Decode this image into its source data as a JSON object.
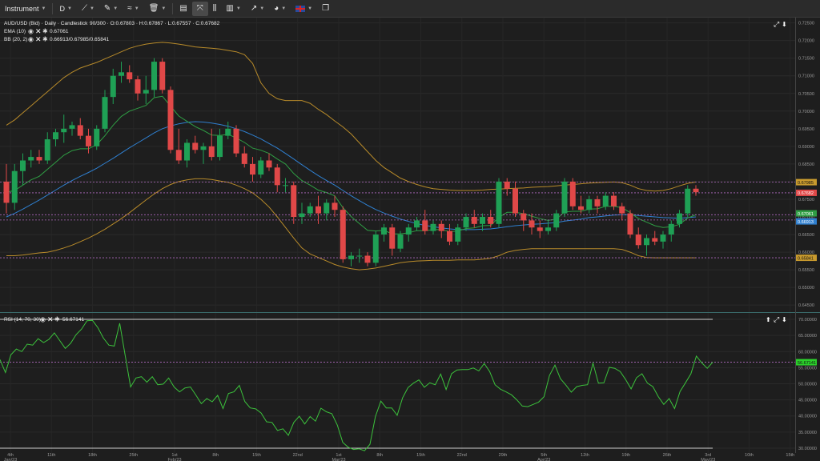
{
  "toolbar": {
    "instrument_label": "Instrument",
    "timeframe_label": "D",
    "chart_type_icon": "candlestick-icon",
    "flag_icon": "uk-flag-icon"
  },
  "main": {
    "legend": {
      "symbol": "AUD/USD (Bid) · Daily · Candlestick",
      "ohlc": "90/300 · O:0.67803 · H:0.67867 · L:0.67557 · C:0.67682",
      "ema_label": "EMA (10)",
      "ema_value": "0.67061",
      "bb_label": "BB (20, 2)",
      "bb_value": "0.66913/0.67985/0.65841"
    },
    "badges": {
      "bb_upper": "0.67985",
      "last_price": "0.67682",
      "ema": "0.67061",
      "bb_mid": "0.66913",
      "bb_lower": "0.65841"
    },
    "y_ticks": [
      "0.72500",
      "0.72000",
      "0.71500",
      "0.71000",
      "0.70500",
      "0.70000",
      "0.69500",
      "0.69000",
      "0.68500",
      "0.68000",
      "0.67500",
      "0.67000",
      "0.66500",
      "0.66000",
      "0.65500",
      "0.65000",
      "0.64500"
    ],
    "colors": {
      "up": "#1fa055",
      "down": "#e04848",
      "ema": "#2f9e44",
      "bb_mid": "#2f7fcf",
      "bb_band": "#b78a2a"
    }
  },
  "rsi": {
    "label": "RSI (14, 70, 30)",
    "value": "56.67141",
    "y_ticks": [
      "70.00000",
      "65.00000",
      "60.00000",
      "55.00000",
      "50.00000",
      "45.00000",
      "40.00000",
      "35.00000",
      "30.00000"
    ],
    "overbought": 70,
    "oversold": 30
  },
  "x_axis": {
    "ticks": [
      {
        "label": "4th",
        "sub": "Jan/23"
      },
      {
        "label": "11th",
        "sub": ""
      },
      {
        "label": "18th",
        "sub": ""
      },
      {
        "label": "25th",
        "sub": ""
      },
      {
        "label": "1st",
        "sub": "Feb/23"
      },
      {
        "label": "8th",
        "sub": ""
      },
      {
        "label": "15th",
        "sub": ""
      },
      {
        "label": "22nd",
        "sub": ""
      },
      {
        "label": "1st",
        "sub": "Mar/23"
      },
      {
        "label": "8th",
        "sub": ""
      },
      {
        "label": "15th",
        "sub": ""
      },
      {
        "label": "22nd",
        "sub": ""
      },
      {
        "label": "29th",
        "sub": ""
      },
      {
        "label": "5th",
        "sub": "Apr/23"
      },
      {
        "label": "12th",
        "sub": ""
      },
      {
        "label": "19th",
        "sub": ""
      },
      {
        "label": "26th",
        "sub": ""
      },
      {
        "label": "3rd",
        "sub": "May/23"
      },
      {
        "label": "10th",
        "sub": ""
      },
      {
        "label": "15th",
        "sub": ""
      }
    ]
  },
  "chart_data": [
    {
      "type": "candlestick",
      "title": "AUD/USD (Bid) · Daily · Candlestick",
      "ylim": [
        0.643,
        0.7265
      ],
      "candles": [
        {
          "o": 0.68,
          "h": 0.685,
          "l": 0.671,
          "c": 0.674
        },
        {
          "o": 0.674,
          "h": 0.685,
          "l": 0.672,
          "c": 0.683
        },
        {
          "o": 0.683,
          "h": 0.688,
          "l": 0.679,
          "c": 0.686
        },
        {
          "o": 0.686,
          "h": 0.689,
          "l": 0.684,
          "c": 0.687
        },
        {
          "o": 0.687,
          "h": 0.689,
          "l": 0.685,
          "c": 0.686
        },
        {
          "o": 0.686,
          "h": 0.694,
          "l": 0.685,
          "c": 0.692
        },
        {
          "o": 0.692,
          "h": 0.695,
          "l": 0.69,
          "c": 0.694
        },
        {
          "o": 0.694,
          "h": 0.699,
          "l": 0.691,
          "c": 0.695
        },
        {
          "o": 0.695,
          "h": 0.697,
          "l": 0.693,
          "c": 0.696
        },
        {
          "o": 0.696,
          "h": 0.698,
          "l": 0.692,
          "c": 0.693
        },
        {
          "o": 0.693,
          "h": 0.695,
          "l": 0.688,
          "c": 0.69
        },
        {
          "o": 0.69,
          "h": 0.696,
          "l": 0.689,
          "c": 0.695
        },
        {
          "o": 0.695,
          "h": 0.706,
          "l": 0.694,
          "c": 0.704
        },
        {
          "o": 0.704,
          "h": 0.712,
          "l": 0.702,
          "c": 0.71
        },
        {
          "o": 0.71,
          "h": 0.714,
          "l": 0.708,
          "c": 0.711
        },
        {
          "o": 0.711,
          "h": 0.713,
          "l": 0.708,
          "c": 0.709
        },
        {
          "o": 0.709,
          "h": 0.71,
          "l": 0.703,
          "c": 0.705
        },
        {
          "o": 0.705,
          "h": 0.71,
          "l": 0.702,
          "c": 0.706
        },
        {
          "o": 0.706,
          "h": 0.715,
          "l": 0.704,
          "c": 0.714
        },
        {
          "o": 0.714,
          "h": 0.715,
          "l": 0.705,
          "c": 0.706
        },
        {
          "o": 0.706,
          "h": 0.707,
          "l": 0.688,
          "c": 0.689
        },
        {
          "o": 0.689,
          "h": 0.695,
          "l": 0.685,
          "c": 0.686
        },
        {
          "o": 0.686,
          "h": 0.692,
          "l": 0.684,
          "c": 0.691
        },
        {
          "o": 0.691,
          "h": 0.693,
          "l": 0.688,
          "c": 0.689
        },
        {
          "o": 0.689,
          "h": 0.691,
          "l": 0.685,
          "c": 0.69
        },
        {
          "o": 0.69,
          "h": 0.695,
          "l": 0.686,
          "c": 0.687
        },
        {
          "o": 0.687,
          "h": 0.695,
          "l": 0.686,
          "c": 0.693
        },
        {
          "o": 0.693,
          "h": 0.697,
          "l": 0.692,
          "c": 0.695
        },
        {
          "o": 0.695,
          "h": 0.696,
          "l": 0.687,
          "c": 0.688
        },
        {
          "o": 0.688,
          "h": 0.69,
          "l": 0.684,
          "c": 0.685
        },
        {
          "o": 0.685,
          "h": 0.687,
          "l": 0.68,
          "c": 0.682
        },
        {
          "o": 0.682,
          "h": 0.687,
          "l": 0.681,
          "c": 0.686
        },
        {
          "o": 0.686,
          "h": 0.688,
          "l": 0.683,
          "c": 0.684
        },
        {
          "o": 0.684,
          "h": 0.685,
          "l": 0.677,
          "c": 0.679
        },
        {
          "o": 0.679,
          "h": 0.681,
          "l": 0.677,
          "c": 0.679
        },
        {
          "o": 0.679,
          "h": 0.68,
          "l": 0.668,
          "c": 0.67
        },
        {
          "o": 0.67,
          "h": 0.674,
          "l": 0.668,
          "c": 0.671
        },
        {
          "o": 0.671,
          "h": 0.674,
          "l": 0.67,
          "c": 0.673
        },
        {
          "o": 0.673,
          "h": 0.676,
          "l": 0.668,
          "c": 0.671
        },
        {
          "o": 0.671,
          "h": 0.675,
          "l": 0.669,
          "c": 0.674
        },
        {
          "o": 0.674,
          "h": 0.676,
          "l": 0.67,
          "c": 0.672
        },
        {
          "o": 0.672,
          "h": 0.673,
          "l": 0.657,
          "c": 0.658
        },
        {
          "o": 0.658,
          "h": 0.66,
          "l": 0.656,
          "c": 0.659
        },
        {
          "o": 0.659,
          "h": 0.661,
          "l": 0.657,
          "c": 0.659
        },
        {
          "o": 0.659,
          "h": 0.66,
          "l": 0.656,
          "c": 0.657
        },
        {
          "o": 0.657,
          "h": 0.666,
          "l": 0.656,
          "c": 0.665
        },
        {
          "o": 0.665,
          "h": 0.668,
          "l": 0.663,
          "c": 0.667
        },
        {
          "o": 0.667,
          "h": 0.668,
          "l": 0.659,
          "c": 0.661
        },
        {
          "o": 0.661,
          "h": 0.666,
          "l": 0.66,
          "c": 0.665
        },
        {
          "o": 0.665,
          "h": 0.668,
          "l": 0.663,
          "c": 0.667
        },
        {
          "o": 0.667,
          "h": 0.67,
          "l": 0.666,
          "c": 0.669
        },
        {
          "o": 0.669,
          "h": 0.672,
          "l": 0.665,
          "c": 0.666
        },
        {
          "o": 0.666,
          "h": 0.669,
          "l": 0.665,
          "c": 0.668
        },
        {
          "o": 0.668,
          "h": 0.669,
          "l": 0.664,
          "c": 0.666
        },
        {
          "o": 0.666,
          "h": 0.668,
          "l": 0.662,
          "c": 0.663
        },
        {
          "o": 0.663,
          "h": 0.668,
          "l": 0.662,
          "c": 0.667
        },
        {
          "o": 0.667,
          "h": 0.671,
          "l": 0.666,
          "c": 0.67
        },
        {
          "o": 0.67,
          "h": 0.672,
          "l": 0.667,
          "c": 0.668
        },
        {
          "o": 0.668,
          "h": 0.671,
          "l": 0.666,
          "c": 0.67
        },
        {
          "o": 0.67,
          "h": 0.672,
          "l": 0.667,
          "c": 0.668
        },
        {
          "o": 0.668,
          "h": 0.681,
          "l": 0.667,
          "c": 0.68
        },
        {
          "o": 0.68,
          "h": 0.681,
          "l": 0.676,
          "c": 0.678
        },
        {
          "o": 0.678,
          "h": 0.68,
          "l": 0.67,
          "c": 0.671
        },
        {
          "o": 0.671,
          "h": 0.672,
          "l": 0.666,
          "c": 0.669
        },
        {
          "o": 0.669,
          "h": 0.671,
          "l": 0.665,
          "c": 0.667
        },
        {
          "o": 0.667,
          "h": 0.669,
          "l": 0.664,
          "c": 0.666
        },
        {
          "o": 0.666,
          "h": 0.669,
          "l": 0.665,
          "c": 0.667
        },
        {
          "o": 0.667,
          "h": 0.672,
          "l": 0.666,
          "c": 0.671
        },
        {
          "o": 0.671,
          "h": 0.681,
          "l": 0.67,
          "c": 0.68
        },
        {
          "o": 0.68,
          "h": 0.681,
          "l": 0.672,
          "c": 0.673
        },
        {
          "o": 0.673,
          "h": 0.676,
          "l": 0.671,
          "c": 0.672
        },
        {
          "o": 0.672,
          "h": 0.676,
          "l": 0.671,
          "c": 0.675
        },
        {
          "o": 0.675,
          "h": 0.676,
          "l": 0.671,
          "c": 0.673
        },
        {
          "o": 0.673,
          "h": 0.677,
          "l": 0.672,
          "c": 0.676
        },
        {
          "o": 0.676,
          "h": 0.677,
          "l": 0.672,
          "c": 0.673
        },
        {
          "o": 0.673,
          "h": 0.674,
          "l": 0.669,
          "c": 0.671
        },
        {
          "o": 0.671,
          "h": 0.672,
          "l": 0.664,
          "c": 0.665
        },
        {
          "o": 0.665,
          "h": 0.667,
          "l": 0.661,
          "c": 0.662
        },
        {
          "o": 0.662,
          "h": 0.665,
          "l": 0.659,
          "c": 0.664
        },
        {
          "o": 0.664,
          "h": 0.666,
          "l": 0.662,
          "c": 0.663
        },
        {
          "o": 0.663,
          "h": 0.666,
          "l": 0.661,
          "c": 0.665
        },
        {
          "o": 0.665,
          "h": 0.669,
          "l": 0.663,
          "c": 0.668
        },
        {
          "o": 0.668,
          "h": 0.672,
          "l": 0.667,
          "c": 0.671
        },
        {
          "o": 0.671,
          "h": 0.679,
          "l": 0.67,
          "c": 0.678
        },
        {
          "o": 0.678,
          "h": 0.679,
          "l": 0.676,
          "c": 0.677
        }
      ],
      "ema": [
        0.677,
        0.6775,
        0.679,
        0.6805,
        0.6815,
        0.6835,
        0.6855,
        0.6875,
        0.6888,
        0.6893,
        0.6893,
        0.6905,
        0.693,
        0.696,
        0.6985,
        0.7,
        0.7008,
        0.7016,
        0.7038,
        0.7042,
        0.7014,
        0.6986,
        0.6971,
        0.6956,
        0.6945,
        0.6932,
        0.6931,
        0.6934,
        0.6924,
        0.6911,
        0.6895,
        0.6889,
        0.688,
        0.6864,
        0.685,
        0.6823,
        0.6803,
        0.679,
        0.6776,
        0.6769,
        0.676,
        0.6726,
        0.6701,
        0.6681,
        0.6662,
        0.666,
        0.6662,
        0.6652,
        0.6652,
        0.6655,
        0.6661,
        0.6661,
        0.6664,
        0.6664,
        0.6658,
        0.666,
        0.6667,
        0.6669,
        0.6675,
        0.6676,
        0.6699,
        0.6713,
        0.6713,
        0.6709,
        0.6702,
        0.6695,
        0.669,
        0.6694,
        0.6714,
        0.6716,
        0.6716,
        0.6722,
        0.6723,
        0.673,
        0.673,
        0.6726,
        0.6712,
        0.6695,
        0.6685,
        0.6675,
        0.667,
        0.6672,
        0.6679,
        0.6697,
        0.6706
      ],
      "bb_mid": [
        0.67,
        0.671,
        0.6722,
        0.6735,
        0.6748,
        0.6762,
        0.6776,
        0.679,
        0.6803,
        0.6815,
        0.6826,
        0.6838,
        0.6852,
        0.6866,
        0.6881,
        0.6896,
        0.691,
        0.6924,
        0.6938,
        0.695,
        0.6958,
        0.6964,
        0.6968,
        0.697,
        0.6969,
        0.6966,
        0.6962,
        0.6957,
        0.695,
        0.6942,
        0.6932,
        0.6921,
        0.6908,
        0.6895,
        0.688,
        0.6864,
        0.6848,
        0.6832,
        0.6817,
        0.6803,
        0.679,
        0.6775,
        0.676,
        0.6746,
        0.6733,
        0.6721,
        0.6711,
        0.6702,
        0.6694,
        0.6687,
        0.6681,
        0.6676,
        0.6672,
        0.6669,
        0.6666,
        0.6664,
        0.6664,
        0.6664,
        0.6665,
        0.6666,
        0.6669,
        0.6672,
        0.6675,
        0.6677,
        0.6679,
        0.668,
        0.6682,
        0.6684,
        0.6688,
        0.6691,
        0.6694,
        0.6698,
        0.67,
        0.6703,
        0.6705,
        0.6706,
        0.6706,
        0.6704,
        0.6702,
        0.67,
        0.6698,
        0.6697,
        0.6696,
        0.6698,
        0.67
      ],
      "bb_upper": [
        0.696,
        0.6975,
        0.6995,
        0.7015,
        0.7035,
        0.7055,
        0.7075,
        0.7095,
        0.711,
        0.7122,
        0.713,
        0.7138,
        0.7148,
        0.7158,
        0.7168,
        0.7178,
        0.7185,
        0.719,
        0.7193,
        0.7195,
        0.7193,
        0.719,
        0.7186,
        0.7182,
        0.718,
        0.7178,
        0.7176,
        0.7172,
        0.7168,
        0.716,
        0.7135,
        0.708,
        0.705,
        0.7035,
        0.703,
        0.703,
        0.703,
        0.7022,
        0.7005,
        0.699,
        0.6972,
        0.6955,
        0.6935,
        0.691,
        0.6885,
        0.686,
        0.684,
        0.6825,
        0.681,
        0.68,
        0.6792,
        0.6785,
        0.678,
        0.6778,
        0.6776,
        0.6775,
        0.6775,
        0.6775,
        0.6776,
        0.6778,
        0.6779,
        0.678,
        0.6781,
        0.6782,
        0.6784,
        0.6785,
        0.6786,
        0.6788,
        0.679,
        0.6792,
        0.6794,
        0.6796,
        0.6797,
        0.6798,
        0.6799,
        0.6797,
        0.679,
        0.678,
        0.6775,
        0.6773,
        0.6775,
        0.678,
        0.6788,
        0.6795,
        0.6799
      ],
      "bb_lower": [
        0.659,
        0.659,
        0.6592,
        0.6595,
        0.6598,
        0.66,
        0.6605,
        0.6612,
        0.662,
        0.663,
        0.664,
        0.6652,
        0.6665,
        0.668,
        0.6695,
        0.6712,
        0.673,
        0.6748,
        0.6765,
        0.678,
        0.6792,
        0.68,
        0.6805,
        0.6808,
        0.6808,
        0.6806,
        0.6802,
        0.6798,
        0.679,
        0.678,
        0.6768,
        0.675,
        0.6728,
        0.67,
        0.667,
        0.664,
        0.6612,
        0.6595,
        0.6585,
        0.6575,
        0.6565,
        0.6558,
        0.6553,
        0.655,
        0.6552,
        0.6555,
        0.656,
        0.6565,
        0.657,
        0.6573,
        0.6575,
        0.6576,
        0.6577,
        0.6577,
        0.6577,
        0.6578,
        0.6578,
        0.6578,
        0.658,
        0.6583,
        0.659,
        0.66,
        0.6605,
        0.6608,
        0.661,
        0.661,
        0.661,
        0.661,
        0.661,
        0.661,
        0.661,
        0.661,
        0.661,
        0.661,
        0.661,
        0.6608,
        0.66,
        0.659,
        0.6585,
        0.6584,
        0.6584,
        0.6584,
        0.6584,
        0.6584,
        0.6584
      ],
      "hlines": [
        0.67985,
        0.67682,
        0.67061,
        0.66913,
        0.65841
      ]
    },
    {
      "type": "line",
      "title": "RSI (14, 70, 30)",
      "ylim": [
        28.5,
        72.0
      ],
      "values": [
        57.5,
        53.5,
        59.0,
        60.8,
        60.0,
        62.3,
        62.0,
        64.0,
        62.8,
        63.8,
        65.8,
        63.4,
        61.0,
        62.6,
        65.3,
        67.0,
        69.6,
        69.7,
        67.4,
        64.2,
        62.0,
        61.7,
        68.8,
        58.8,
        49.0,
        51.8,
        52.2,
        50.5,
        52.2,
        49.7,
        49.9,
        51.8,
        49.0,
        47.5,
        48.7,
        49.0,
        46.5,
        43.8,
        45.4,
        44.4,
        46.4,
        42.3,
        47.0,
        47.5,
        49.5,
        44.5,
        42.5,
        42.2,
        40.9,
        38.2,
        38.0,
        35.5,
        36.0,
        34.0,
        38.0,
        39.9,
        37.5,
        39.8,
        38.4,
        42.4,
        41.3,
        40.7,
        37.2,
        31.8,
        30.3,
        29.6,
        29.8,
        29.2,
        31.2,
        39.8,
        44.6,
        42.5,
        42.5,
        40.2,
        45.6,
        48.8,
        50.2,
        51.2,
        48.9,
        50.3,
        49.7,
        53.0,
        48.2,
        53.1,
        54.3,
        54.4,
        54.4,
        54.9,
        54.0,
        56.3,
        53.8,
        49.7,
        48.3,
        47.5,
        46.6,
        45.0,
        43.1,
        42.9,
        43.6,
        44.3,
        46.0,
        52.6,
        55.8,
        51.6,
        49.6,
        47.4,
        49.1,
        49.5,
        49.7,
        56.4,
        50.2,
        50.3,
        55.1,
        54.8,
        53.8,
        51.3,
        48.4,
        51.9,
        53.1,
        50.2,
        49.1,
        46.0,
        43.6,
        45.4,
        42.3,
        47.6,
        50.3,
        53.1,
        58.6,
        56.5,
        54.8,
        56.7
      ]
    }
  ]
}
